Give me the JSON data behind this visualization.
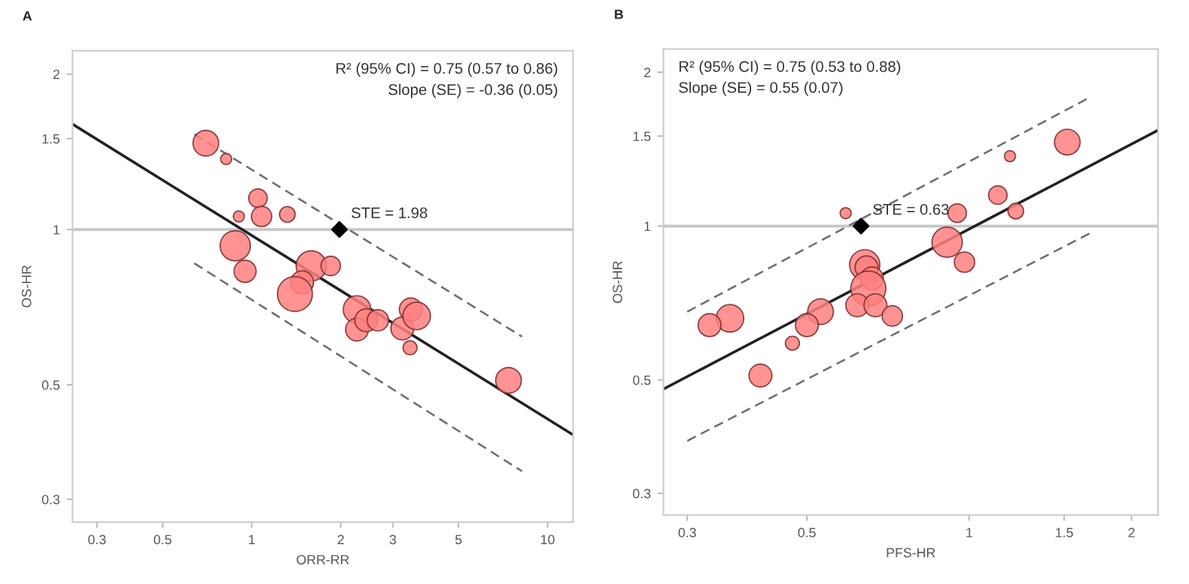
{
  "chart_data": [
    {
      "type": "bubble",
      "title": "A",
      "xlabel": "ORR-RR",
      "ylabel": "OS-HR",
      "log": "xy",
      "grid": false,
      "legend": false,
      "xlim": [
        0.248,
        12.2
      ],
      "ylim": [
        0.271,
        2.22
      ],
      "xticks": [
        0.3,
        0.5,
        1,
        2,
        3,
        5,
        10
      ],
      "yticks": [
        0.3,
        0.5,
        1,
        1.5,
        2
      ],
      "ref_lines": [
        {
          "axis": "y",
          "value": 1,
          "color": "#c8c8c8"
        }
      ],
      "annotations": [
        "R² (95% CI) = 0.75 (0.57 to 0.86)",
        "Slope (SE) = -0.36 (0.05)",
        {
          "text": "STE = 1.98",
          "x": 1.98,
          "y": 1
        }
      ],
      "series": [
        {
          "color": "#ff8080",
          "x": [
            0.7,
            0.82,
            1.05,
            0.905,
            1.08,
            1.32,
            0.88,
            0.95,
            1.59,
            1.85,
            1.48,
            1.4,
            2.27,
            2.27,
            2.44,
            2.67,
            3.23,
            3.45,
            3.61,
            3.43,
            7.38
          ],
          "values": [
            1.47,
            1.37,
            1.15,
            1.06,
            1.06,
            1.07,
            0.93,
            0.83,
            0.85,
            0.85,
            0.79,
            0.75,
            0.7,
            0.64,
            0.667,
            0.667,
            0.643,
            0.7,
            0.68,
            0.59,
            0.51
          ],
          "sizes": [
            0.54,
            0.1,
            0.28,
            0.1,
            0.34,
            0.2,
            0.75,
            0.4,
            0.75,
            0.31,
            0.43,
            1,
            0.62,
            0.43,
            0.43,
            0.37,
            0.43,
            0.43,
            0.62,
            0.16,
            0.54
          ]
        },
        {
          "type": "line",
          "color": "#222222",
          "line_style": "solid",
          "x": [
            0.248,
            12.2
          ],
          "values": [
            1.6,
            0.4
          ]
        },
        {
          "type": "line",
          "color": "#6e6e6e",
          "line_style": "dashed",
          "x": [
            0.64,
            8.2
          ],
          "values": [
            1.53,
            0.62
          ]
        },
        {
          "type": "line",
          "color": "#6e6e6e",
          "line_style": "dashed",
          "x": [
            0.64,
            8.2
          ],
          "values": [
            0.86,
            0.34
          ]
        },
        {
          "type": "scatter",
          "color": "#000000",
          "marker": "diamond",
          "x": [
            1.98
          ],
          "values": [
            1
          ]
        }
      ]
    },
    {
      "type": "bubble",
      "title": "B",
      "xlabel": "PFS-HR",
      "ylabel": "OS-HR",
      "log": "xy",
      "grid": false,
      "legend": false,
      "xlim": [
        0.271,
        2.24
      ],
      "ylim": [
        0.272,
        2.22
      ],
      "xticks": [
        0.3,
        0.5,
        1,
        1.5,
        2
      ],
      "yticks": [
        0.3,
        0.5,
        1,
        1.5,
        2
      ],
      "ref_lines": [
        {
          "axis": "y",
          "value": 1,
          "color": "#c8c8c8"
        }
      ],
      "annotations": [
        "R² (95% CI) = 0.75 (0.53 to 0.88)",
        "Slope (SE) = 0.55 (0.07)",
        {
          "text": "STE = 0.63",
          "x": 0.63,
          "y": 1
        }
      ],
      "series": [
        {
          "color": "#ff8080",
          "x": [
            1.52,
            1.19,
            1.13,
            1.22,
            0.95,
            0.59,
            0.91,
            0.98,
            0.64,
            0.645,
            0.66,
            0.65,
            0.62,
            0.67,
            0.72,
            0.53,
            0.5,
            0.47,
            0.36,
            0.33,
            0.41
          ],
          "values": [
            1.46,
            1.37,
            1.15,
            1.07,
            1.06,
            1.06,
            0.93,
            0.85,
            0.84,
            0.83,
            0.79,
            0.755,
            0.7,
            0.7,
            0.667,
            0.68,
            0.64,
            0.59,
            0.66,
            0.64,
            0.51
          ],
          "sizes": [
            0.54,
            0.1,
            0.28,
            0.2,
            0.28,
            0.1,
            0.75,
            0.34,
            0.75,
            0.43,
            0.43,
            1,
            0.43,
            0.43,
            0.34,
            0.54,
            0.43,
            0.16,
            0.62,
            0.43,
            0.43
          ]
        },
        {
          "type": "line",
          "color": "#222222",
          "line_style": "solid",
          "x": [
            0.271,
            2.24
          ],
          "values": [
            0.48,
            1.54
          ]
        },
        {
          "type": "line",
          "color": "#6e6e6e",
          "line_style": "dashed",
          "x": [
            0.3,
            1.68
          ],
          "values": [
            0.68,
            1.79
          ]
        },
        {
          "type": "line",
          "color": "#6e6e6e",
          "line_style": "dashed",
          "x": [
            0.3,
            1.68
          ],
          "values": [
            0.38,
            0.97
          ]
        },
        {
          "type": "scatter",
          "color": "#000000",
          "marker": "diamond",
          "x": [
            0.63
          ],
          "values": [
            1
          ]
        }
      ]
    }
  ]
}
